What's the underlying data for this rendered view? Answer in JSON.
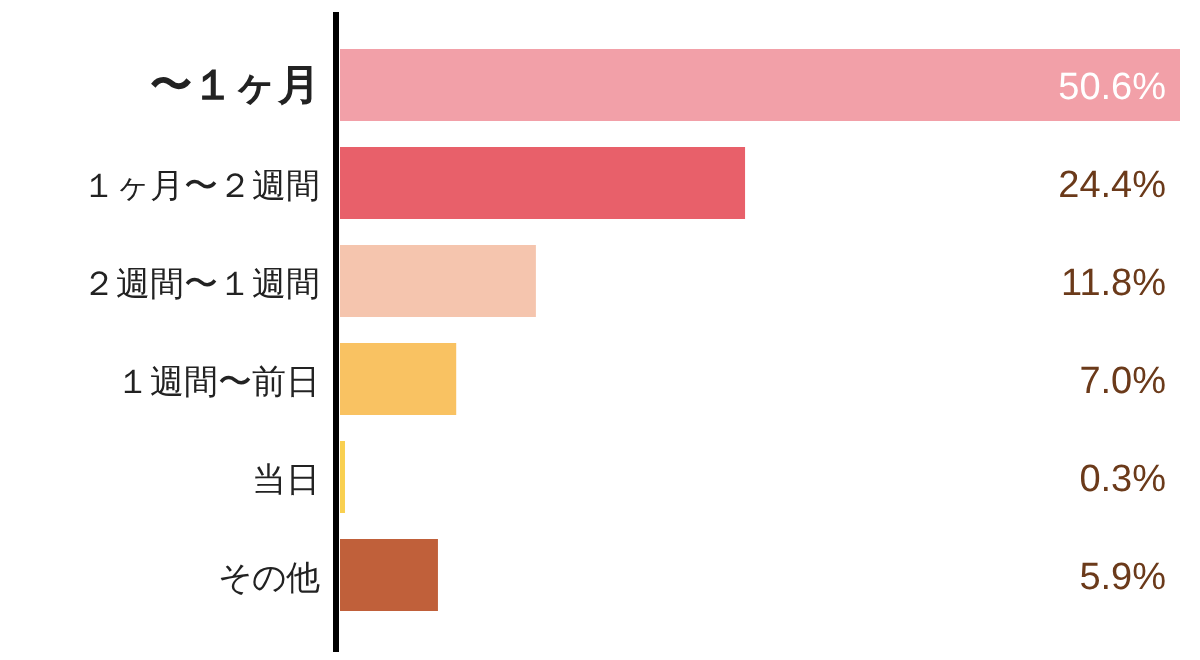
{
  "chart_data": {
    "type": "bar",
    "orientation": "horizontal",
    "categories": [
      "〜１ヶ月",
      "１ヶ月〜２週間",
      "２週間〜１週間",
      "１週間〜前日",
      "当日",
      "その他"
    ],
    "values": [
      50.6,
      24.4,
      11.8,
      7.0,
      0.3,
      5.9
    ],
    "value_labels": [
      "50.6%",
      "24.4%",
      "11.8%",
      "7.0%",
      "0.3%",
      "5.9%"
    ],
    "colors": [
      "#f2a0a8",
      "#e8606a",
      "#f5c5ae",
      "#f9c262",
      "#f9d050",
      "#c0603a"
    ]
  }
}
